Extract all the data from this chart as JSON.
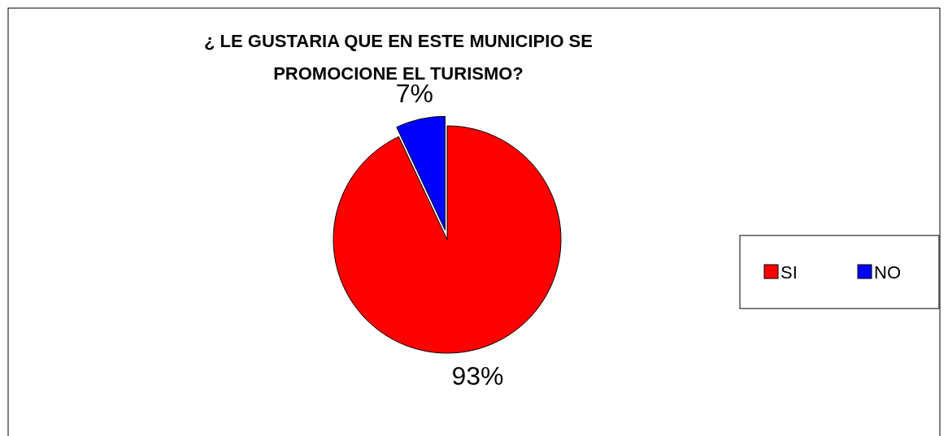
{
  "chart_data": {
    "type": "pie",
    "title": "¿ LE GUSTARIA QUE EN ESTE MUNICIPIO SE\nPROMOCIONE EL TURISMO?",
    "categories": [
      "SI",
      "NO"
    ],
    "values": [
      93,
      7
    ],
    "colors": [
      "#ff0000",
      "#0000ff"
    ],
    "value_labels": [
      "93%",
      "7%"
    ],
    "legend": "right"
  }
}
